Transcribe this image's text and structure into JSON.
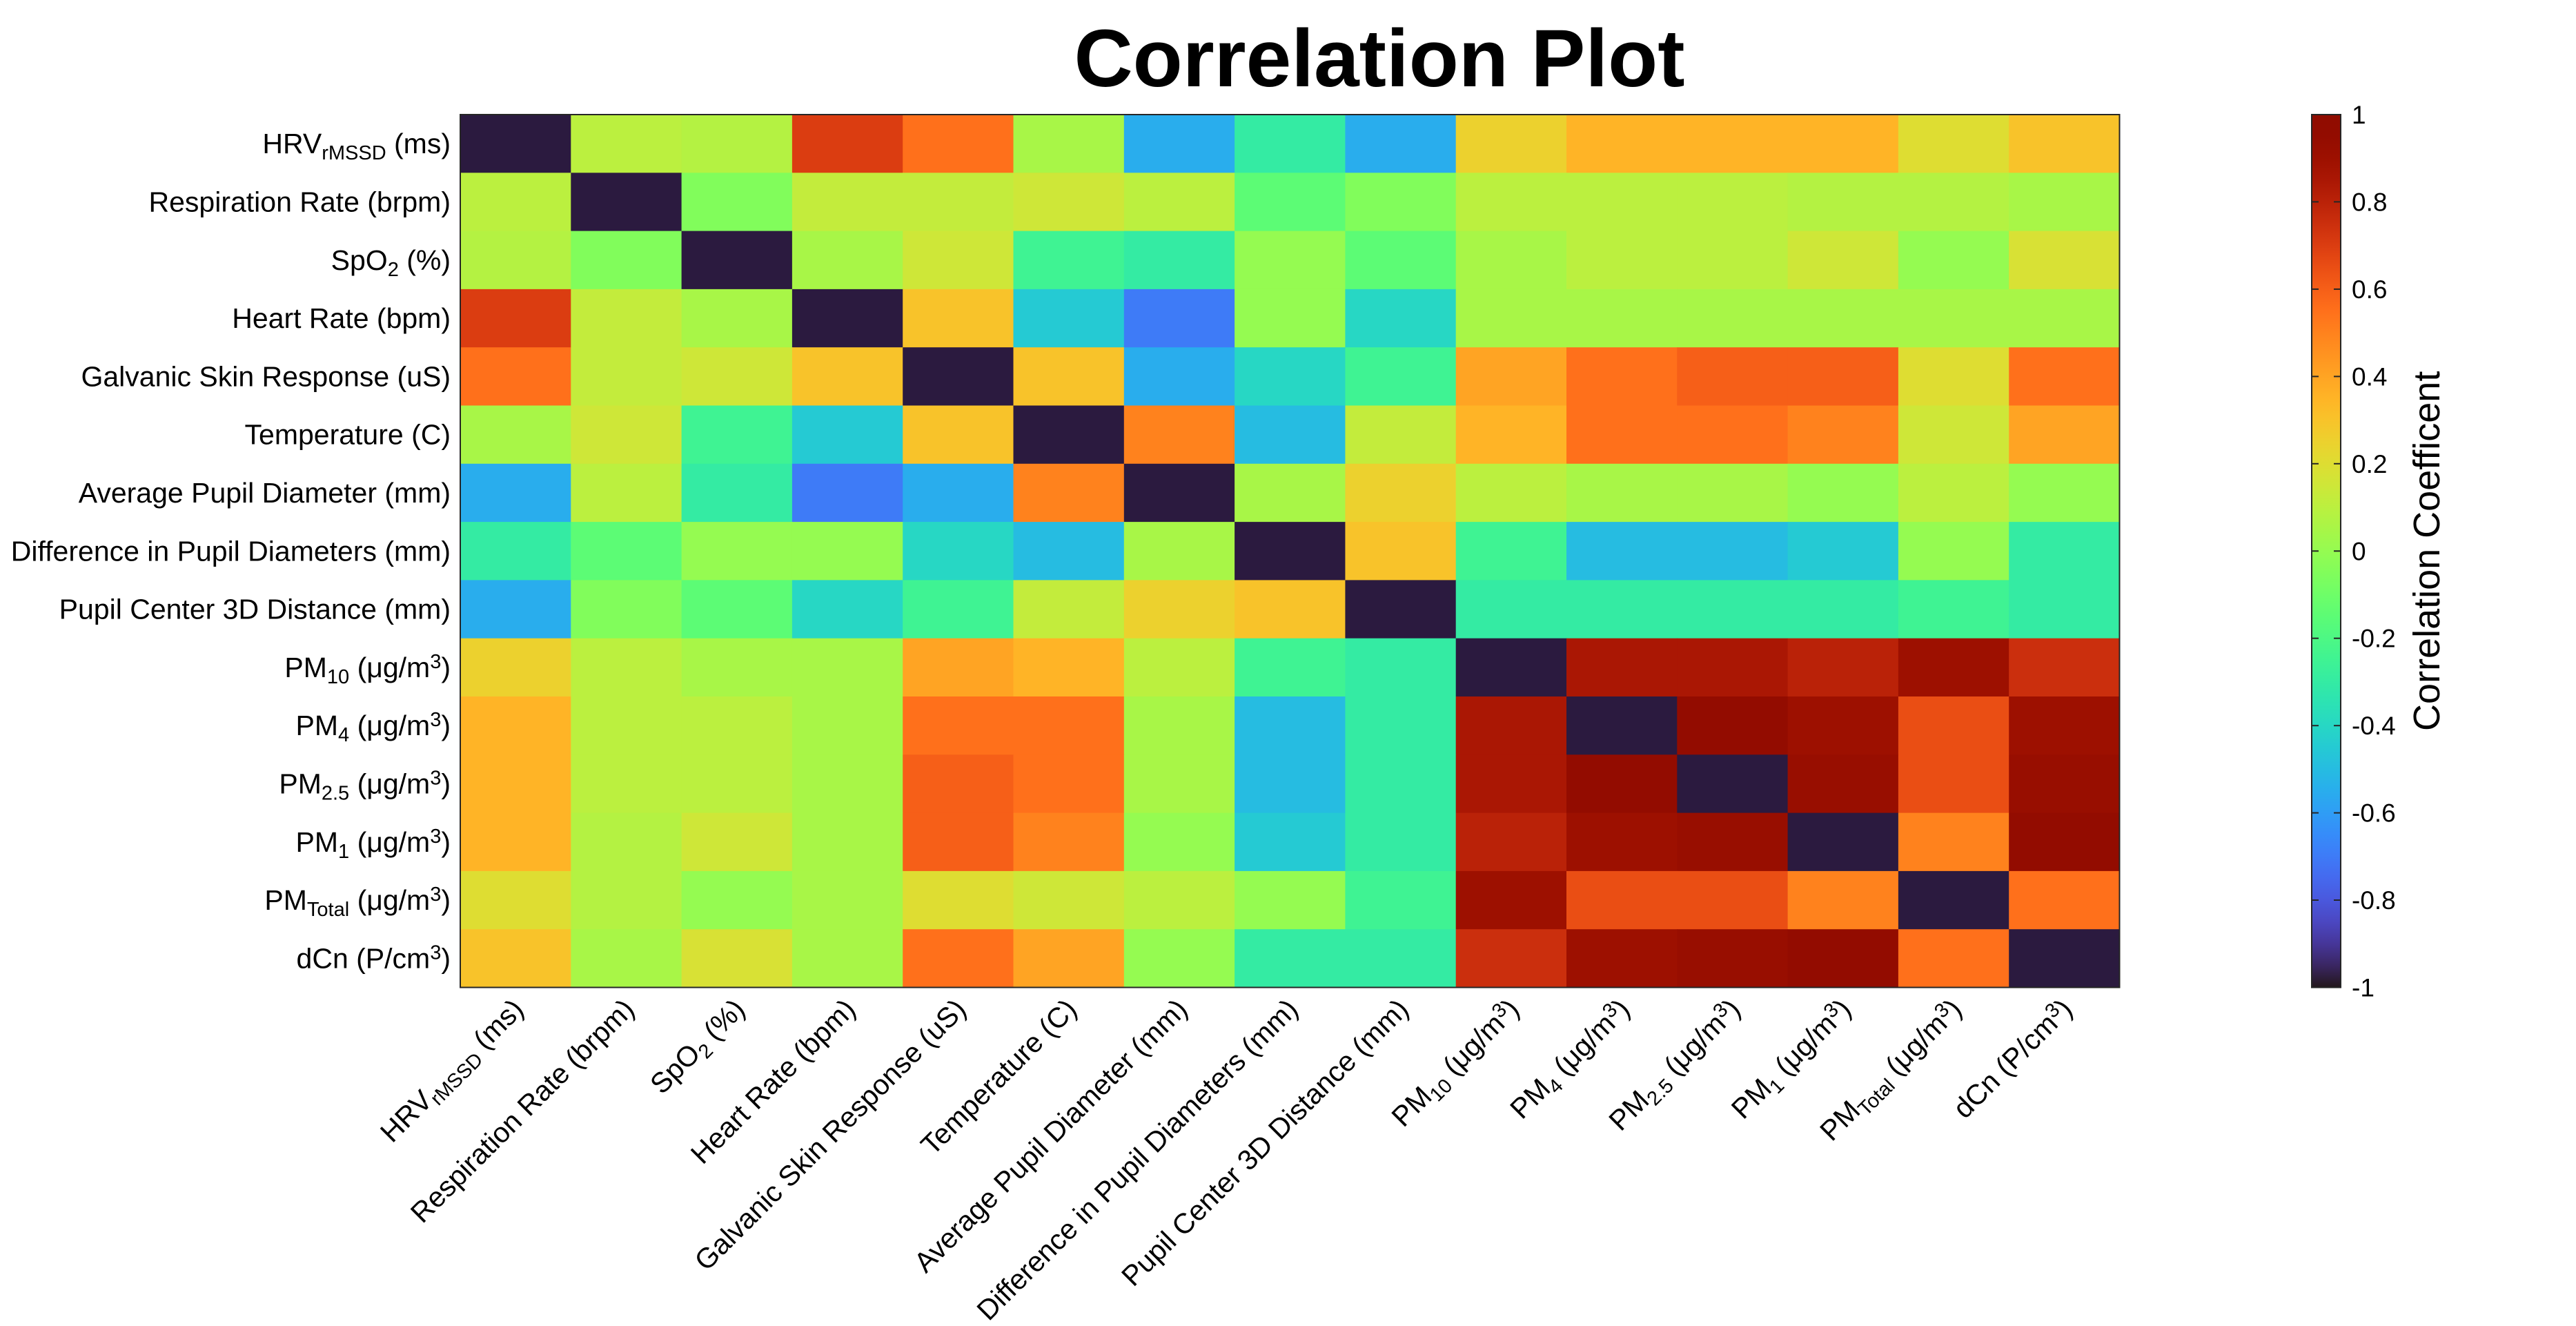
{
  "chart_data": {
    "type": "heatmap",
    "title": "Correlation Plot",
    "variables": [
      {
        "base": "HRV",
        "sub": "rMSSD",
        "sup": "",
        "suffix": " (ms)"
      },
      {
        "base": "Respiration Rate (brpm)",
        "sub": "",
        "sup": "",
        "suffix": ""
      },
      {
        "base": "SpO",
        "sub": "2",
        "sup": "",
        "suffix": " (%)"
      },
      {
        "base": "Heart Rate (bpm)",
        "sub": "",
        "sup": "",
        "suffix": ""
      },
      {
        "base": "Galvanic Skin Response (uS)",
        "sub": "",
        "sup": "",
        "suffix": ""
      },
      {
        "base": "Temperature (C)",
        "sub": "",
        "sup": "",
        "suffix": ""
      },
      {
        "base": "Average Pupil Diameter (mm)",
        "sub": "",
        "sup": "",
        "suffix": ""
      },
      {
        "base": "Difference in Pupil Diameters (mm)",
        "sub": "",
        "sup": "",
        "suffix": ""
      },
      {
        "base": "Pupil Center 3D Distance (mm)",
        "sub": "",
        "sup": "",
        "suffix": ""
      },
      {
        "base": "PM",
        "sub": "10",
        "sup": "3",
        "suffix": " (μg/m"
      },
      {
        "base": "PM",
        "sub": "4",
        "sup": "3",
        "suffix": " (μg/m"
      },
      {
        "base": "PM",
        "sub": "2.5",
        "sup": "3",
        "suffix": " (μg/m"
      },
      {
        "base": "PM",
        "sub": "1",
        "sup": "3",
        "suffix": " (μg/m"
      },
      {
        "base": "PM",
        "sub": "Total",
        "sup": "3",
        "suffix": " (μg/m"
      },
      {
        "base": "dCn (P/cm",
        "sub": "",
        "sup": "3",
        "suffix": ""
      }
    ],
    "matrix": [
      [
        1.0,
        0.1,
        0.08,
        0.7,
        0.55,
        0.05,
        -0.55,
        -0.3,
        -0.55,
        0.25,
        0.35,
        0.35,
        0.35,
        0.2,
        0.3
      ],
      [
        0.1,
        1.0,
        -0.05,
        0.12,
        0.12,
        0.15,
        0.1,
        -0.15,
        -0.05,
        0.1,
        0.1,
        0.1,
        0.08,
        0.08,
        0.05
      ],
      [
        0.08,
        -0.05,
        1.0,
        0.05,
        0.15,
        -0.25,
        -0.3,
        0.0,
        -0.15,
        0.05,
        0.1,
        0.1,
        0.15,
        0.0,
        0.18
      ],
      [
        0.7,
        0.12,
        0.05,
        1.0,
        0.3,
        -0.45,
        -0.7,
        0.0,
        -0.4,
        0.05,
        0.05,
        0.05,
        0.05,
        0.05,
        0.05
      ],
      [
        0.55,
        0.12,
        0.15,
        0.3,
        1.0,
        0.3,
        -0.55,
        -0.4,
        -0.25,
        0.4,
        0.55,
        0.6,
        0.6,
        0.2,
        0.55
      ],
      [
        0.05,
        0.15,
        -0.25,
        -0.45,
        0.3,
        1.0,
        0.5,
        -0.5,
        0.12,
        0.35,
        0.55,
        0.55,
        0.5,
        0.15,
        0.4
      ],
      [
        -0.55,
        0.1,
        -0.3,
        -0.7,
        -0.55,
        0.5,
        1.0,
        0.05,
        0.25,
        0.1,
        0.05,
        0.05,
        0.0,
        0.1,
        0.0
      ],
      [
        -0.3,
        -0.15,
        0.0,
        0.0,
        -0.4,
        -0.5,
        0.05,
        1.0,
        0.3,
        -0.25,
        -0.5,
        -0.5,
        -0.45,
        0.0,
        -0.3
      ],
      [
        -0.55,
        -0.05,
        -0.15,
        -0.4,
        -0.25,
        0.12,
        0.25,
        0.3,
        1.0,
        -0.3,
        -0.3,
        -0.3,
        -0.3,
        -0.25,
        -0.3
      ],
      [
        0.25,
        0.1,
        0.05,
        0.05,
        0.4,
        0.35,
        0.1,
        -0.25,
        -0.3,
        1.0,
        0.85,
        0.85,
        0.8,
        0.9,
        0.75
      ],
      [
        0.35,
        0.1,
        0.1,
        0.05,
        0.55,
        0.55,
        0.05,
        -0.5,
        -0.3,
        0.85,
        1.0,
        0.95,
        0.9,
        0.65,
        0.9
      ],
      [
        0.35,
        0.1,
        0.1,
        0.05,
        0.6,
        0.55,
        0.05,
        -0.5,
        -0.3,
        0.85,
        0.95,
        1.0,
        0.92,
        0.65,
        0.92
      ],
      [
        0.35,
        0.08,
        0.15,
        0.05,
        0.6,
        0.5,
        0.0,
        -0.45,
        -0.3,
        0.8,
        0.9,
        0.92,
        1.0,
        0.5,
        0.95
      ],
      [
        0.2,
        0.08,
        0.0,
        0.05,
        0.2,
        0.15,
        0.1,
        0.0,
        -0.25,
        0.9,
        0.65,
        0.65,
        0.5,
        1.0,
        0.55
      ],
      [
        0.3,
        0.05,
        0.18,
        0.05,
        0.55,
        0.4,
        0.0,
        -0.3,
        -0.3,
        0.75,
        0.9,
        0.92,
        0.95,
        0.55,
        1.0
      ]
    ],
    "diagonal_color": "#2b1a3f",
    "colorbar": {
      "label": "Correlation Coefficent",
      "range": [
        -1,
        1
      ],
      "ticks": [
        1,
        0.8,
        0.6,
        0.4,
        0.2,
        0,
        -0.2,
        -0.4,
        -0.6,
        -0.8,
        -1
      ],
      "tick_labels": [
        "1",
        "0.8",
        "0.6",
        "0.4",
        "0.2",
        "0",
        "-0.2",
        "-0.4",
        "-0.6",
        "-0.8",
        "-1"
      ],
      "colormap": "turbo"
    }
  }
}
